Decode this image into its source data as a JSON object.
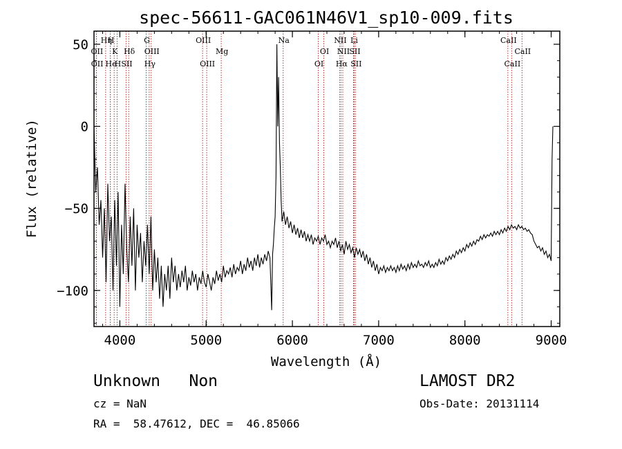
{
  "chart_data": {
    "type": "line",
    "title": "spec-56611-GAC061N46V1_sp10-009.fits",
    "xlabel": "Wavelength (Å)",
    "ylabel": "Flux (relative)",
    "xlim": [
      3700,
      9100
    ],
    "ylim": [
      -122,
      58
    ],
    "xticks": [
      4000,
      5000,
      6000,
      7000,
      8000,
      9000
    ],
    "yticks": [
      50,
      0,
      -50,
      -100
    ],
    "grid": false,
    "line_color": "#000000",
    "marker_line_color": "#b03030",
    "series": [
      {
        "points": [
          [
            3700,
            0
          ],
          [
            3720,
            -40
          ],
          [
            3740,
            -25
          ],
          [
            3760,
            -60
          ],
          [
            3780,
            -45
          ],
          [
            3800,
            -80
          ],
          [
            3820,
            -50
          ],
          [
            3840,
            -95
          ],
          [
            3860,
            -35
          ],
          [
            3880,
            -70
          ],
          [
            3900,
            -55
          ],
          [
            3920,
            -100
          ],
          [
            3940,
            -45
          ],
          [
            3960,
            -85
          ],
          [
            3980,
            -40
          ],
          [
            4000,
            -110
          ],
          [
            4020,
            -60
          ],
          [
            4040,
            -90
          ],
          [
            4060,
            -35
          ],
          [
            4080,
            -75
          ],
          [
            4100,
            -95
          ],
          [
            4120,
            -55
          ],
          [
            4140,
            -85
          ],
          [
            4160,
            -50
          ],
          [
            4180,
            -100
          ],
          [
            4200,
            -60
          ],
          [
            4220,
            -80
          ],
          [
            4240,
            -65
          ],
          [
            4260,
            -95
          ],
          [
            4280,
            -70
          ],
          [
            4300,
            -85
          ],
          [
            4320,
            -60
          ],
          [
            4340,
            -90
          ],
          [
            4360,
            -55
          ],
          [
            4380,
            -100
          ],
          [
            4400,
            -75
          ],
          [
            4420,
            -95
          ],
          [
            4440,
            -80
          ],
          [
            4460,
            -105
          ],
          [
            4480,
            -85
          ],
          [
            4500,
            -110
          ],
          [
            4520,
            -90
          ],
          [
            4540,
            -100
          ],
          [
            4560,
            -85
          ],
          [
            4580,
            -105
          ],
          [
            4600,
            -80
          ],
          [
            4620,
            -95
          ],
          [
            4640,
            -85
          ],
          [
            4660,
            -100
          ],
          [
            4680,
            -90
          ],
          [
            4700,
            -98
          ],
          [
            4720,
            -88
          ],
          [
            4740,
            -95
          ],
          [
            4760,
            -85
          ],
          [
            4780,
            -100
          ],
          [
            4800,
            -92
          ],
          [
            4820,
            -97
          ],
          [
            4840,
            -88
          ],
          [
            4860,
            -95
          ],
          [
            4880,
            -90
          ],
          [
            4900,
            -100
          ],
          [
            4920,
            -92
          ],
          [
            4940,
            -96
          ],
          [
            4960,
            -88
          ],
          [
            4980,
            -95
          ],
          [
            5000,
            -98
          ],
          [
            5020,
            -90
          ],
          [
            5040,
            -95
          ],
          [
            5060,
            -100
          ],
          [
            5080,
            -92
          ],
          [
            5100,
            -96
          ],
          [
            5120,
            -88
          ],
          [
            5140,
            -94
          ],
          [
            5160,
            -90
          ],
          [
            5180,
            -95
          ],
          [
            5200,
            -85
          ],
          [
            5220,
            -92
          ],
          [
            5240,
            -88
          ],
          [
            5260,
            -90
          ],
          [
            5280,
            -86
          ],
          [
            5300,
            -92
          ],
          [
            5320,
            -84
          ],
          [
            5340,
            -90
          ],
          [
            5360,
            -86
          ],
          [
            5380,
            -88
          ],
          [
            5400,
            -82
          ],
          [
            5420,
            -90
          ],
          [
            5440,
            -84
          ],
          [
            5460,
            -88
          ],
          [
            5480,
            -80
          ],
          [
            5500,
            -86
          ],
          [
            5520,
            -82
          ],
          [
            5540,
            -88
          ],
          [
            5560,
            -80
          ],
          [
            5580,
            -85
          ],
          [
            5600,
            -78
          ],
          [
            5620,
            -86
          ],
          [
            5640,
            -80
          ],
          [
            5660,
            -84
          ],
          [
            5680,
            -78
          ],
          [
            5700,
            -82
          ],
          [
            5720,
            -76
          ],
          [
            5740,
            -80
          ],
          [
            5760,
            -112
          ],
          [
            5770,
            -78
          ],
          [
            5780,
            -72
          ],
          [
            5790,
            -62
          ],
          [
            5800,
            -55
          ],
          [
            5810,
            -30
          ],
          [
            5820,
            50
          ],
          [
            5830,
            0
          ],
          [
            5840,
            30
          ],
          [
            5850,
            -10
          ],
          [
            5860,
            -25
          ],
          [
            5870,
            -45
          ],
          [
            5880,
            -58
          ],
          [
            5900,
            -52
          ],
          [
            5920,
            -60
          ],
          [
            5940,
            -55
          ],
          [
            5960,
            -62
          ],
          [
            5980,
            -58
          ],
          [
            6000,
            -65
          ],
          [
            6020,
            -60
          ],
          [
            6040,
            -66
          ],
          [
            6060,
            -62
          ],
          [
            6080,
            -68
          ],
          [
            6100,
            -63
          ],
          [
            6120,
            -68
          ],
          [
            6140,
            -64
          ],
          [
            6160,
            -70
          ],
          [
            6180,
            -66
          ],
          [
            6200,
            -70
          ],
          [
            6220,
            -66
          ],
          [
            6240,
            -72
          ],
          [
            6260,
            -68
          ],
          [
            6280,
            -70
          ],
          [
            6300,
            -67
          ],
          [
            6320,
            -72
          ],
          [
            6340,
            -68
          ],
          [
            6360,
            -70
          ],
          [
            6380,
            -66
          ],
          [
            6400,
            -72
          ],
          [
            6420,
            -70
          ],
          [
            6440,
            -74
          ],
          [
            6460,
            -70
          ],
          [
            6480,
            -72
          ],
          [
            6500,
            -68
          ],
          [
            6520,
            -74
          ],
          [
            6540,
            -70
          ],
          [
            6560,
            -76
          ],
          [
            6580,
            -72
          ],
          [
            6600,
            -78
          ],
          [
            6620,
            -70
          ],
          [
            6640,
            -75
          ],
          [
            6660,
            -72
          ],
          [
            6680,
            -77
          ],
          [
            6700,
            -74
          ],
          [
            6720,
            -80
          ],
          [
            6740,
            -74
          ],
          [
            6760,
            -78
          ],
          [
            6780,
            -75
          ],
          [
            6800,
            -80
          ],
          [
            6820,
            -76
          ],
          [
            6840,
            -82
          ],
          [
            6860,
            -78
          ],
          [
            6880,
            -84
          ],
          [
            6900,
            -80
          ],
          [
            6920,
            -86
          ],
          [
            6940,
            -82
          ],
          [
            6960,
            -88
          ],
          [
            6980,
            -84
          ],
          [
            7000,
            -90
          ],
          [
            7020,
            -86
          ],
          [
            7040,
            -88
          ],
          [
            7060,
            -85
          ],
          [
            7080,
            -89
          ],
          [
            7100,
            -86
          ],
          [
            7120,
            -88
          ],
          [
            7140,
            -85
          ],
          [
            7160,
            -88
          ],
          [
            7180,
            -86
          ],
          [
            7200,
            -89
          ],
          [
            7220,
            -85
          ],
          [
            7240,
            -88
          ],
          [
            7260,
            -84
          ],
          [
            7280,
            -87
          ],
          [
            7300,
            -85
          ],
          [
            7320,
            -88
          ],
          [
            7340,
            -84
          ],
          [
            7360,
            -87
          ],
          [
            7380,
            -83
          ],
          [
            7400,
            -86
          ],
          [
            7420,
            -84
          ],
          [
            7440,
            -86
          ],
          [
            7460,
            -82
          ],
          [
            7480,
            -85
          ],
          [
            7500,
            -84
          ],
          [
            7520,
            -86
          ],
          [
            7540,
            -83
          ],
          [
            7560,
            -85
          ],
          [
            7580,
            -82
          ],
          [
            7600,
            -86
          ],
          [
            7620,
            -84
          ],
          [
            7640,
            -86
          ],
          [
            7660,
            -83
          ],
          [
            7680,
            -85
          ],
          [
            7700,
            -81
          ],
          [
            7720,
            -84
          ],
          [
            7740,
            -82
          ],
          [
            7760,
            -84
          ],
          [
            7780,
            -80
          ],
          [
            7800,
            -82
          ],
          [
            7820,
            -79
          ],
          [
            7840,
            -81
          ],
          [
            7860,
            -78
          ],
          [
            7880,
            -80
          ],
          [
            7900,
            -76
          ],
          [
            7920,
            -78
          ],
          [
            7940,
            -75
          ],
          [
            7960,
            -77
          ],
          [
            7980,
            -74
          ],
          [
            8000,
            -76
          ],
          [
            8020,
            -72
          ],
          [
            8040,
            -74
          ],
          [
            8060,
            -71
          ],
          [
            8080,
            -73
          ],
          [
            8100,
            -70
          ],
          [
            8120,
            -72
          ],
          [
            8140,
            -69
          ],
          [
            8160,
            -70
          ],
          [
            8180,
            -67
          ],
          [
            8200,
            -69
          ],
          [
            8220,
            -66
          ],
          [
            8240,
            -68
          ],
          [
            8260,
            -66
          ],
          [
            8280,
            -67
          ],
          [
            8300,
            -65
          ],
          [
            8320,
            -67
          ],
          [
            8340,
            -64
          ],
          [
            8360,
            -66
          ],
          [
            8380,
            -64
          ],
          [
            8400,
            -66
          ],
          [
            8420,
            -63
          ],
          [
            8440,
            -65
          ],
          [
            8460,
            -62
          ],
          [
            8480,
            -64
          ],
          [
            8500,
            -61
          ],
          [
            8520,
            -63
          ],
          [
            8540,
            -60
          ],
          [
            8560,
            -62
          ],
          [
            8580,
            -61
          ],
          [
            8600,
            -63
          ],
          [
            8620,
            -60
          ],
          [
            8640,
            -62
          ],
          [
            8660,
            -61
          ],
          [
            8680,
            -63
          ],
          [
            8700,
            -62
          ],
          [
            8720,
            -64
          ],
          [
            8740,
            -63
          ],
          [
            8760,
            -65
          ],
          [
            8780,
            -66
          ],
          [
            8800,
            -70
          ],
          [
            8820,
            -72
          ],
          [
            8840,
            -74
          ],
          [
            8860,
            -73
          ],
          [
            8880,
            -76
          ],
          [
            8900,
            -74
          ],
          [
            8920,
            -78
          ],
          [
            8940,
            -76
          ],
          [
            8960,
            -80
          ],
          [
            8980,
            -78
          ],
          [
            9000,
            -82
          ],
          [
            9010,
            -20
          ],
          [
            9020,
            0
          ]
        ]
      }
    ],
    "lines": [
      {
        "label": "OII",
        "wavelength": 3727,
        "row": 2
      },
      {
        "label": "OII",
        "wavelength": 3729,
        "row": 3
      },
      {
        "label": "Hη",
        "wavelength": 3835,
        "row": 1
      },
      {
        "label": "H",
        "wavelength": 3889,
        "row": 1
      },
      {
        "label": "He",
        "wavelength": 3889,
        "row": 3
      },
      {
        "label": "K",
        "wavelength": 3934,
        "row": 2
      },
      {
        "label": "H",
        "wavelength": 3968,
        "row": 3
      },
      {
        "label": "SII",
        "wavelength": 4072,
        "row": 3
      },
      {
        "label": "Hδ",
        "wavelength": 4102,
        "row": 2
      },
      {
        "label": "G",
        "wavelength": 4305,
        "row": 1
      },
      {
        "label": "OIII",
        "wavelength": 4363,
        "row": 2
      },
      {
        "label": "Hγ",
        "wavelength": 4340,
        "row": 3
      },
      {
        "label": "OIII",
        "wavelength": 4959,
        "row": 1
      },
      {
        "label": "OIII",
        "wavelength": 5007,
        "row": 3
      },
      {
        "label": "Mg",
        "wavelength": 5175,
        "row": 2
      },
      {
        "label": "Na",
        "wavelength": 5893,
        "row": 1
      },
      {
        "label": "OI",
        "wavelength": 6300,
        "row": 3
      },
      {
        "label": "OI",
        "wavelength": 6364,
        "row": 2
      },
      {
        "label": "NII",
        "wavelength": 6548,
        "row": 1
      },
      {
        "label": "Hα",
        "wavelength": 6563,
        "row": 3
      },
      {
        "label": "NII",
        "wavelength": 6584,
        "row": 2
      },
      {
        "label": "Li",
        "wavelength": 6708,
        "row": 1
      },
      {
        "label": "SII",
        "wavelength": 6716,
        "row": 2
      },
      {
        "label": "SII",
        "wavelength": 6731,
        "row": 3
      },
      {
        "label": "CaII",
        "wavelength": 8498,
        "row": 1
      },
      {
        "label": "CaII",
        "wavelength": 8542,
        "row": 3
      },
      {
        "label": "CaII",
        "wavelength": 8662,
        "row": 2
      }
    ]
  },
  "info": {
    "class_text": "Unknown   Non",
    "survey": "LAMOST DR2",
    "cz": "cz = NaN",
    "obs_date": "Obs-Date: 20131114",
    "coords": "RA =  58.47612, DEC =  46.85066"
  }
}
